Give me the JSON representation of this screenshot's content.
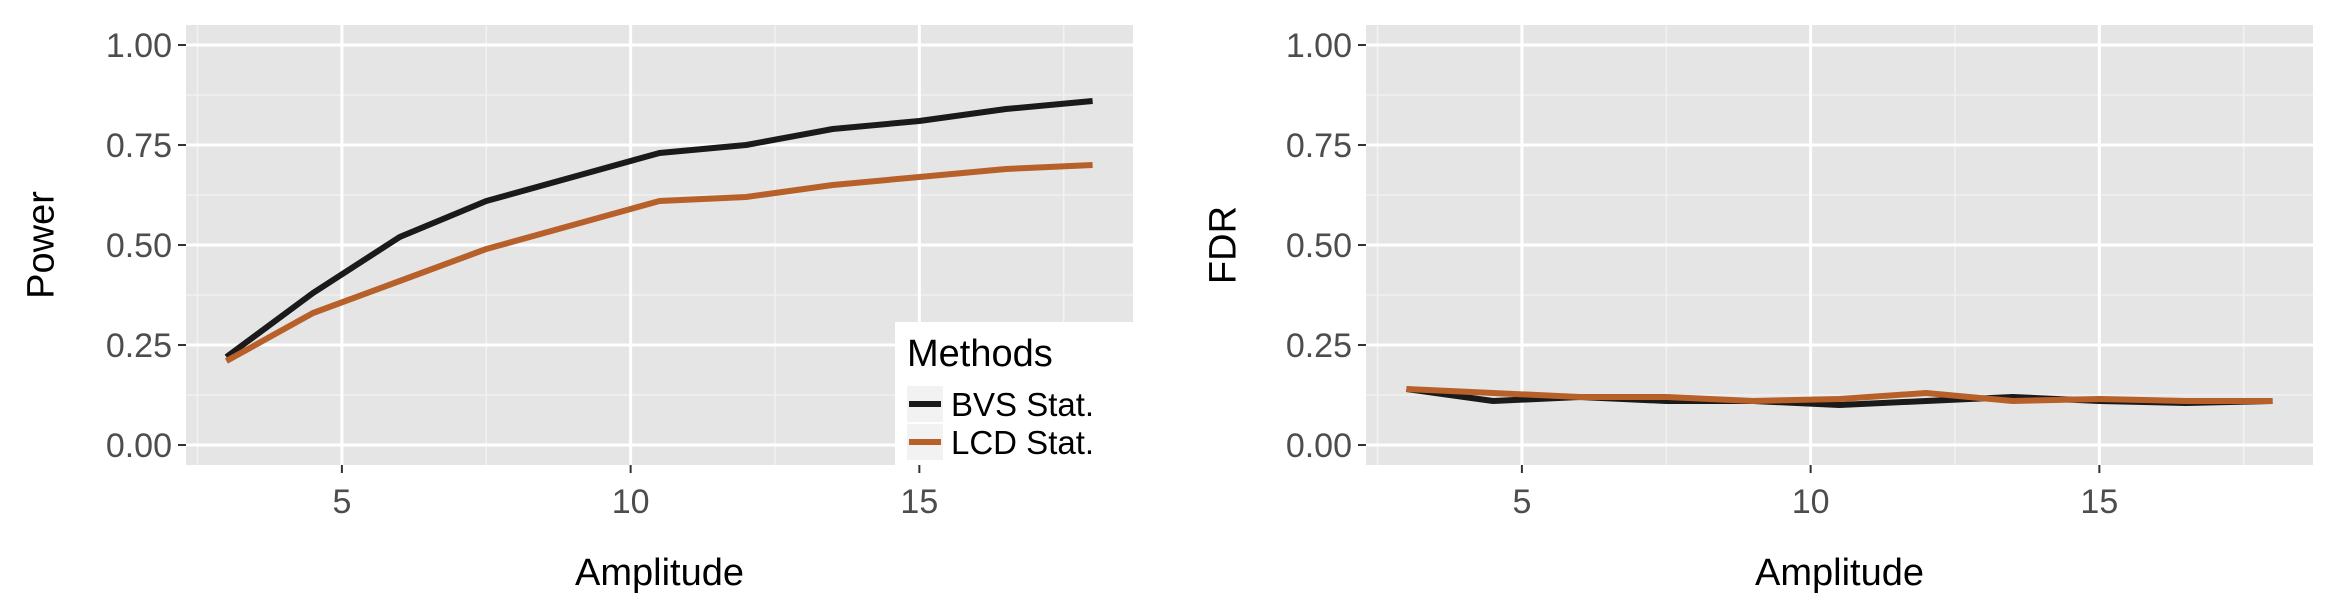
{
  "chart_data": [
    {
      "type": "line",
      "xlabel": "Amplitude",
      "ylabel": "Power",
      "xlim": [
        2.3,
        18.7
      ],
      "ylim": [
        -0.05,
        1.05
      ],
      "xticks": [
        5,
        10,
        15
      ],
      "yticks": [
        0.0,
        0.25,
        0.5,
        0.75,
        1.0
      ],
      "ytick_labels": [
        "0.00",
        "0.25",
        "0.50",
        "0.75",
        "1.00"
      ],
      "grid": true,
      "legend": {
        "title": "Methods",
        "position": "bottom-right"
      },
      "x": [
        3,
        4.5,
        6,
        7.5,
        9,
        10.5,
        12,
        13.5,
        15,
        16.5,
        18
      ],
      "series": [
        {
          "name": "BVS Stat.",
          "color": "#1a1a1a",
          "values": [
            0.22,
            0.38,
            0.52,
            0.61,
            0.67,
            0.73,
            0.75,
            0.79,
            0.81,
            0.84,
            0.86
          ]
        },
        {
          "name": "LCD Stat.",
          "color": "#b8602a",
          "values": [
            0.21,
            0.33,
            0.41,
            0.49,
            0.55,
            0.61,
            0.62,
            0.65,
            0.67,
            0.69,
            0.7
          ]
        }
      ]
    },
    {
      "type": "line",
      "xlabel": "Amplitude",
      "ylabel": "FDR",
      "xlim": [
        2.3,
        18.7
      ],
      "ylim": [
        -0.05,
        1.05
      ],
      "xticks": [
        5,
        10,
        15
      ],
      "yticks": [
        0.0,
        0.25,
        0.5,
        0.75,
        1.0
      ],
      "ytick_labels": [
        "0.00",
        "0.25",
        "0.50",
        "0.75",
        "1.00"
      ],
      "grid": true,
      "x": [
        3,
        4.5,
        6,
        7.5,
        9,
        10.5,
        12,
        13.5,
        15,
        16.5,
        18
      ],
      "series": [
        {
          "name": "BVS Stat.",
          "color": "#1a1a1a",
          "values": [
            0.14,
            0.11,
            0.12,
            0.11,
            0.11,
            0.1,
            0.11,
            0.12,
            0.11,
            0.105,
            0.11
          ]
        },
        {
          "name": "LCD Stat.",
          "color": "#b8602a",
          "values": [
            0.14,
            0.13,
            0.12,
            0.12,
            0.11,
            0.115,
            0.13,
            0.11,
            0.115,
            0.11,
            0.11
          ]
        }
      ]
    }
  ]
}
